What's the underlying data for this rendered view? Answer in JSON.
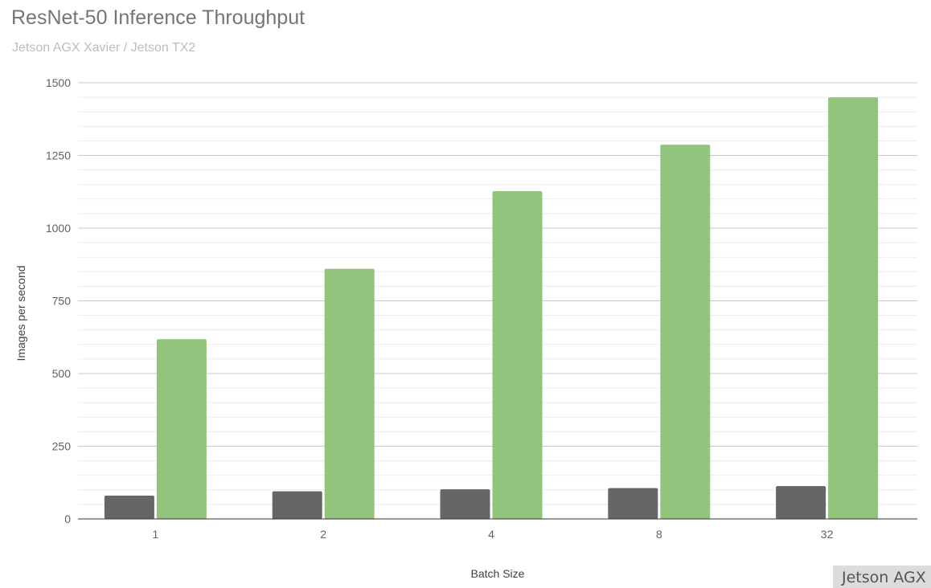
{
  "chart_data": {
    "type": "bar",
    "title": "ResNet-50 Inference Throughput",
    "subtitle": "Jetson AGX Xavier / Jetson TX2",
    "xlabel": "Batch Size",
    "ylabel": "Images per second",
    "categories": [
      "1",
      "2",
      "4",
      "8",
      "32"
    ],
    "series": [
      {
        "values": [
          80,
          95,
          102,
          106,
          113
        ],
        "color": "#666666"
      },
      {
        "values": [
          618,
          860,
          1127,
          1287,
          1450
        ],
        "color": "#93c47d"
      }
    ],
    "ylim": [
      0,
      1500
    ],
    "yticks": [
      0,
      250,
      500,
      750,
      1000,
      1250,
      1500
    ],
    "grid": true,
    "legend_text": "Jetson AGX",
    "legend_position": "bottom-right"
  }
}
